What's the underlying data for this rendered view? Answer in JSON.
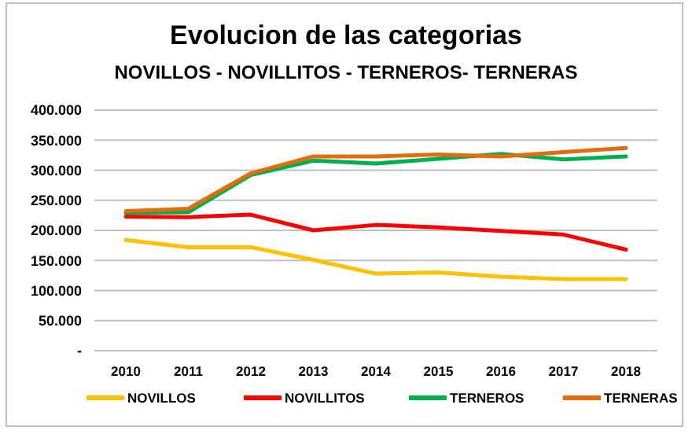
{
  "chart_data": {
    "type": "line",
    "title": "Evolucion de las categorias",
    "subtitle": "NOVILLOS - NOVILLITOS - TERNEROS- TERNERAS",
    "categories": [
      "2010",
      "2011",
      "2012",
      "2013",
      "2014",
      "2015",
      "2016",
      "2017",
      "2018"
    ],
    "series": [
      {
        "name": "NOVILLOS",
        "color": "#ffc000",
        "values": [
          184000,
          172000,
          172000,
          151000,
          128000,
          130000,
          123000,
          119000,
          119000
        ]
      },
      {
        "name": "NOVILLITOS",
        "color": "#ff0000",
        "values": [
          223000,
          222000,
          226000,
          200000,
          209000,
          205000,
          199000,
          193000,
          168000
        ]
      },
      {
        "name": "TERNEROS",
        "color": "#00b050",
        "values": [
          229000,
          230000,
          292000,
          316000,
          311000,
          319000,
          327000,
          318000,
          323000
        ]
      },
      {
        "name": "TERNERAS",
        "color": "#e46c0a",
        "values": [
          232000,
          236000,
          295000,
          323000,
          323000,
          326000,
          323000,
          330000,
          337000
        ]
      }
    ],
    "ylim": [
      0,
      400000
    ],
    "yticks": [
      {
        "value": 0,
        "label": "-"
      },
      {
        "value": 50000,
        "label": "50.000"
      },
      {
        "value": 100000,
        "label": "100.000"
      },
      {
        "value": 150000,
        "label": "150.000"
      },
      {
        "value": 200000,
        "label": "200.000"
      },
      {
        "value": 250000,
        "label": "250.000"
      },
      {
        "value": 300000,
        "label": "300.000"
      },
      {
        "value": 350000,
        "label": "350.000"
      },
      {
        "value": 400000,
        "label": "400.000"
      }
    ],
    "grid": "y",
    "legend": "bottom",
    "marker": "none",
    "line_style": "solid"
  }
}
